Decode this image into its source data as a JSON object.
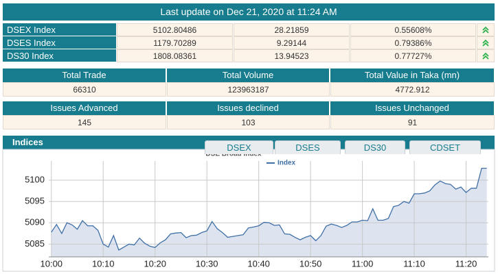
{
  "header": {
    "title": "Last update on Dec 21, 2020 at 11:24 AM"
  },
  "indices": {
    "rows": [
      [
        "DSEX Index",
        "5102.80486",
        "28.21859",
        "0.55608%"
      ],
      [
        "DSES Index",
        "1179.70289",
        "9.29144",
        "0.79386%"
      ],
      [
        "DS30 Index",
        "1808.08361",
        "13.94523",
        "0.77727%"
      ]
    ]
  },
  "market_summary": {
    "headers": [
      "Total Trade",
      "Total Volume",
      "Total Value in Taka (mn)"
    ],
    "values": [
      "66310",
      "123963187",
      "4772.912"
    ]
  },
  "issues": {
    "headers": [
      "Issues Advanced",
      "Issues declined",
      "Issues Unchanged"
    ],
    "values": [
      "145",
      "103",
      "91"
    ]
  },
  "panel": {
    "title": "Indices",
    "tabs": [
      "DSEX",
      "DSES",
      "DS30",
      "CDSET"
    ]
  },
  "chart_data": {
    "type": "line",
    "title": "DSE Broad Index",
    "x": [
      0,
      1,
      2,
      3,
      4,
      5,
      6,
      7,
      8,
      9,
      10,
      11,
      12,
      13,
      14,
      15,
      16,
      17,
      18,
      19,
      20,
      21,
      22,
      23,
      24,
      25,
      26,
      27,
      28,
      29,
      30,
      31,
      32,
      33,
      34,
      35,
      36,
      37,
      38,
      39,
      40,
      41,
      42,
      43,
      44,
      45,
      46,
      47,
      48,
      49,
      50,
      51,
      52,
      53,
      54,
      55,
      56,
      57,
      58,
      59,
      60,
      61,
      62,
      63,
      64,
      65,
      66,
      67,
      68,
      69,
      70,
      71,
      72,
      73,
      74,
      75,
      76,
      77,
      78,
      79,
      80,
      81,
      82,
      83,
      84
    ],
    "series": [
      {
        "name": "Index",
        "color": "#3f6fa6",
        "values": [
          5087.8,
          5089.6,
          5087.5,
          5090,
          5089.5,
          5088.5,
          5090.5,
          5089.3,
          5089.3,
          5088.2,
          5085,
          5084.3,
          5087,
          5083.6,
          5084.3,
          5085,
          5084.8,
          5086.4,
          5085.2,
          5084.5,
          5084.2,
          5085.3,
          5086,
          5087.4,
          5087.6,
          5087.7,
          5086.5,
          5087,
          5087.1,
          5087.7,
          5088.1,
          5090.3,
          5088.6,
          5087.7,
          5086.6,
          5086.8,
          5087,
          5087.2,
          5088.8,
          5089,
          5089.3,
          5090.1,
          5090,
          5089.4,
          5089.5,
          5087.4,
          5087.3,
          5086.6,
          5086,
          5086.6,
          5087,
          5085.8,
          5087,
          5089.2,
          5089.7,
          5089.4,
          5088.9,
          5089.4,
          5090.2,
          5090.2,
          5090.6,
          5090.5,
          5093.3,
          5090.6,
          5090.6,
          5091,
          5093.8,
          5094.1,
          5095,
          5094.6,
          5096.8,
          5096.8,
          5097,
          5097.5,
          5098.9,
          5099.8,
          5099.2,
          5099,
          5097.9,
          5098.4,
          5097.1,
          5098.1,
          5098.1,
          5102.8,
          5102.8
        ]
      }
    ],
    "xlim": [
      -0.5,
      84.3
    ],
    "xticks": [
      {
        "value": 0,
        "label": "10:00"
      },
      {
        "value": 10,
        "label": "10:10"
      },
      {
        "value": 20,
        "label": "10:20"
      },
      {
        "value": 30,
        "label": "10:30"
      },
      {
        "value": 40,
        "label": "10:40"
      },
      {
        "value": 50,
        "label": "10:50"
      },
      {
        "value": 60,
        "label": "11:00"
      },
      {
        "value": 70,
        "label": "11:10"
      },
      {
        "value": 80,
        "label": "11:20"
      }
    ],
    "ylim": [
      5082,
      5104.5
    ],
    "yticks": [
      5085,
      5090,
      5095,
      5100
    ],
    "grid": true,
    "fill_color": "#dde4ef"
  }
}
